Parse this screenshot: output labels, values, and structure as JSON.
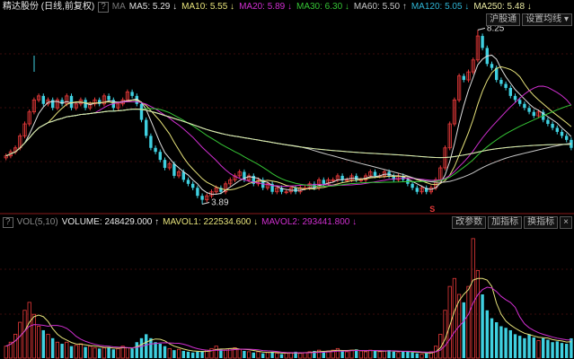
{
  "header": {
    "title": "精达股份 (日线,前复权)",
    "help": "?",
    "ma_label": "MA",
    "ma": [
      {
        "label": "MA5: 5.29 ↓",
        "color": "#e0e0e0"
      },
      {
        "label": "MA10: 5.55 ↓",
        "color": "#e6e27a"
      },
      {
        "label": "MA20: 5.89 ↓",
        "color": "#d02fd0"
      },
      {
        "label": "MA30: 6.30 ↓",
        "color": "#35c435"
      },
      {
        "label": "MA60: 5.50 ↑",
        "color": "#c8c8c8"
      },
      {
        "label": "MA120: 5.05 ↓",
        "color": "#2fb6d6"
      },
      {
        "label": "MA250: 5.48 ↓",
        "color": "#e8e8a0"
      }
    ],
    "buttons": [
      "沪股通",
      "设置均线 ▾"
    ]
  },
  "volume_header": {
    "help": "?",
    "name": "VOL(5,10)",
    "volume": "VOLUME: 248429.000 ↑",
    "mavol1": "MAVOL1: 222534.600 ↓",
    "mavol2": "MAVOL2: 293441.800 ↓",
    "buttons": [
      "改参数",
      "加指标",
      "换指标",
      "×"
    ]
  },
  "signal_marker": "S",
  "chart_data": [
    {
      "type": "candlestick",
      "ylim": [
        3.7,
        9.0
      ],
      "grid": true,
      "colors": {
        "up": "#e83a3a",
        "down": "#3fd0e0"
      },
      "high_label": "8.25",
      "low_label": "3.89",
      "high_value": 8.25,
      "low_value": 3.89,
      "close": [
        5.1,
        5.2,
        5.3,
        5.6,
        5.9,
        6.2,
        6.5,
        6.6,
        6.4,
        6.5,
        6.3,
        6.5,
        6.4,
        6.6,
        6.3,
        6.4,
        6.5,
        6.3,
        6.4,
        6.5,
        6.4,
        6.6,
        6.5,
        6.3,
        6.4,
        6.5,
        6.7,
        6.6,
        6.4,
        6.0,
        5.6,
        5.3,
        5.2,
        5.0,
        4.8,
        4.9,
        4.6,
        4.7,
        4.5,
        4.4,
        4.3,
        4.1,
        4.0,
        4.1,
        4.2,
        4.3,
        4.2,
        4.4,
        4.5,
        4.6,
        4.7,
        4.5,
        4.6,
        4.4,
        4.5,
        4.3,
        4.4,
        4.2,
        4.3,
        4.2,
        4.2,
        4.3,
        4.2,
        4.3,
        4.3,
        4.4,
        4.3,
        4.5,
        4.4,
        4.5,
        4.5,
        4.6,
        4.5,
        4.5,
        4.6,
        4.5,
        4.5,
        4.6,
        4.7,
        4.6,
        4.6,
        4.7,
        4.6,
        4.5,
        4.6,
        4.5,
        4.4,
        4.3,
        4.2,
        4.3,
        4.2,
        4.3,
        4.5,
        4.8,
        5.3,
        5.9,
        6.5,
        7.1,
        7.0,
        7.2,
        7.5,
        8.1,
        7.8,
        7.4,
        7.3,
        7.0,
        6.9,
        6.8,
        6.6,
        6.5,
        6.4,
        6.3,
        6.2,
        6.1,
        6.2,
        6.0,
        5.9,
        5.8,
        5.7,
        5.6,
        5.5,
        5.3
      ],
      "moving_averages": [
        {
          "name": "MA5",
          "period": 5,
          "color": "#e0e0e0"
        },
        {
          "name": "MA10",
          "period": 10,
          "color": "#e6e27a"
        },
        {
          "name": "MA20",
          "period": 20,
          "color": "#d02fd0"
        },
        {
          "name": "MA30",
          "period": 30,
          "color": "#35c435"
        },
        {
          "name": "MA60",
          "period": 60,
          "color": "#c8c8c8"
        },
        {
          "name": "MA120",
          "period": 120,
          "color": "#2fb6d6"
        },
        {
          "name": "MA250",
          "period": 250,
          "color": "#e8e8a0"
        }
      ]
    },
    {
      "type": "bar",
      "ylim": [
        0,
        1600000
      ],
      "values": [
        150000,
        200000,
        300000,
        450000,
        600000,
        700000,
        550000,
        400000,
        350000,
        300000,
        250000,
        200000,
        180000,
        200000,
        150000,
        160000,
        180000,
        140000,
        150000,
        130000,
        120000,
        130000,
        140000,
        110000,
        120000,
        150000,
        130000,
        120000,
        200000,
        250000,
        300000,
        250000,
        200000,
        180000,
        150000,
        120000,
        100000,
        110000,
        90000,
        80000,
        70000,
        80000,
        90000,
        100000,
        120000,
        150000,
        110000,
        100000,
        120000,
        130000,
        110000,
        90000,
        80000,
        70000,
        80000,
        60000,
        70000,
        80000,
        60000,
        50000,
        60000,
        70000,
        80000,
        60000,
        70000,
        80000,
        90000,
        100000,
        80000,
        90000,
        100000,
        120000,
        90000,
        80000,
        100000,
        110000,
        90000,
        80000,
        100000,
        90000,
        80000,
        90000,
        100000,
        80000,
        70000,
        80000,
        90000,
        70000,
        60000,
        50000,
        60000,
        80000,
        150000,
        300000,
        600000,
        900000,
        1000000,
        800000,
        700000,
        900000,
        1500000,
        1100000,
        800000,
        600000,
        500000,
        450000,
        400000,
        380000,
        350000,
        300000,
        280000,
        250000,
        300000,
        260000,
        220000,
        250000,
        230000,
        200000,
        210000,
        190000,
        180000,
        248429
      ],
      "moving_averages": [
        {
          "name": "MAVOL1",
          "period": 5,
          "color": "#e6e27a"
        },
        {
          "name": "MAVOL2",
          "period": 10,
          "color": "#d02fd0"
        }
      ]
    }
  ]
}
